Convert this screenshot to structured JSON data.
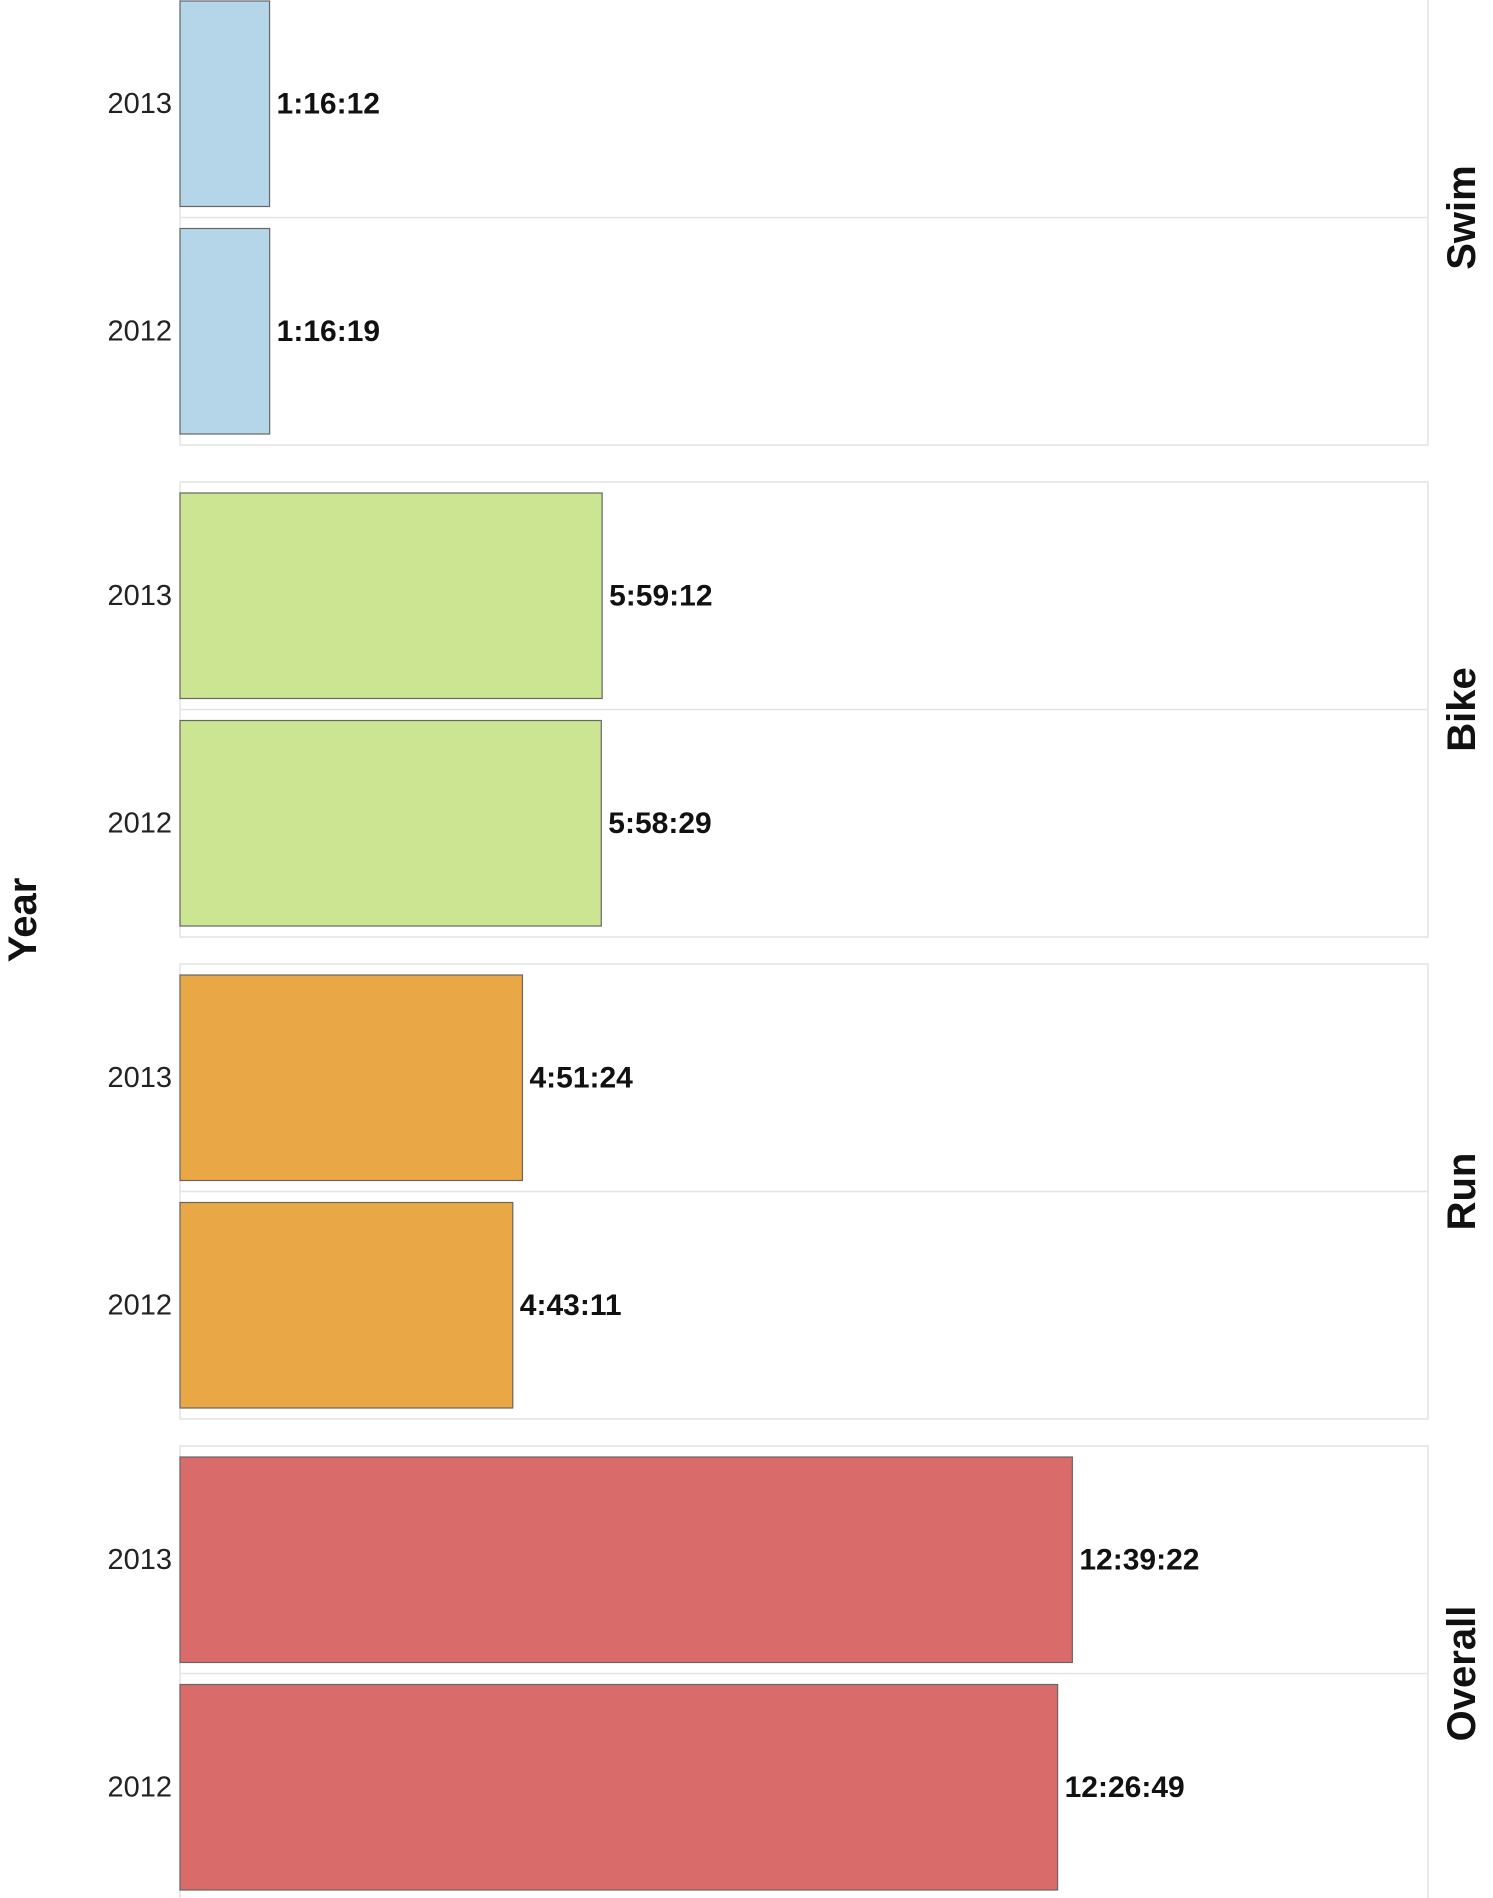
{
  "chart_data": {
    "type": "bar",
    "orientation": "horizontal",
    "ylabel": "Year",
    "xlim_hours": [
      0,
      17.7
    ],
    "grid": false,
    "legend": "none",
    "facets": [
      {
        "name": "Swim",
        "color": "#b4d6e8",
        "bars": [
          {
            "category": "2013",
            "value_hours": 1.27,
            "label": "1:16:12"
          },
          {
            "category": "2012",
            "value_hours": 1.272,
            "label": "1:16:19"
          }
        ]
      },
      {
        "name": "Bike",
        "color": "#cce592",
        "bars": [
          {
            "category": "2013",
            "value_hours": 5.987,
            "label": "5:59:12"
          },
          {
            "category": "2012",
            "value_hours": 5.975,
            "label": "5:58:29"
          }
        ]
      },
      {
        "name": "Run",
        "color": "#e9a746",
        "bars": [
          {
            "category": "2013",
            "value_hours": 4.857,
            "label": "4:51:24"
          },
          {
            "category": "2012",
            "value_hours": 4.72,
            "label": "4:43:11"
          }
        ]
      },
      {
        "name": "Overall",
        "color": "#d96b6b",
        "bars": [
          {
            "category": "2013",
            "value_hours": 12.656,
            "label": "12:39:22"
          },
          {
            "category": "2012",
            "value_hours": 12.447,
            "label": "12:26:49"
          }
        ]
      }
    ]
  }
}
